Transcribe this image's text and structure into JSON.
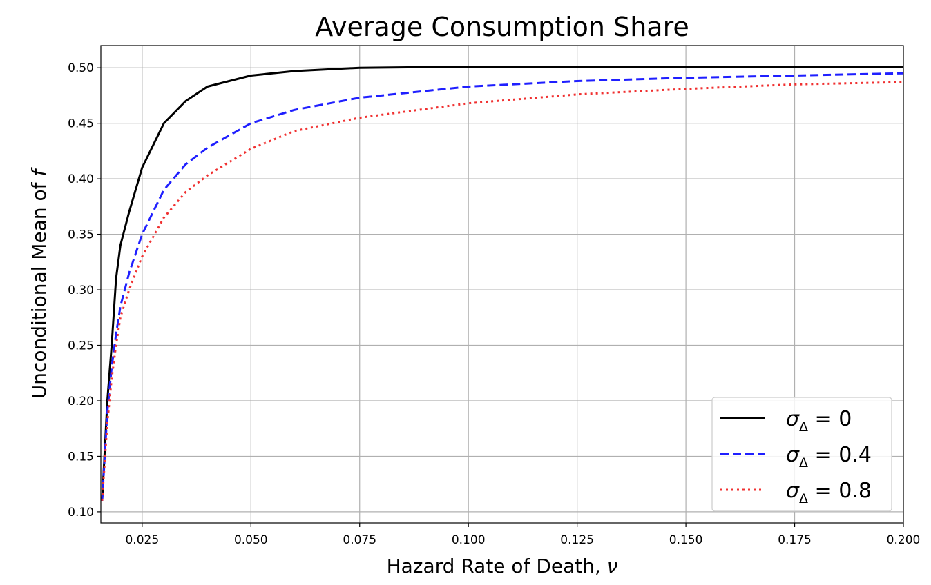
{
  "chart_data": {
    "type": "line",
    "title": "Average Consumption Share",
    "xlabel": "Hazard Rate of Death, ν",
    "ylabel": "Unconditional Mean of f",
    "xlim": [
      0.0155,
      0.2
    ],
    "ylim": [
      0.09,
      0.52
    ],
    "xticks": [
      0.025,
      0.05,
      0.075,
      0.1,
      0.125,
      0.15,
      0.175,
      0.2
    ],
    "xtick_labels": [
      "0.025",
      "0.050",
      "0.075",
      "0.100",
      "0.125",
      "0.150",
      "0.175",
      "0.200"
    ],
    "yticks": [
      0.1,
      0.15,
      0.2,
      0.25,
      0.3,
      0.35,
      0.4,
      0.45,
      0.5
    ],
    "ytick_labels": [
      "0.10",
      "0.15",
      "0.20",
      "0.25",
      "0.30",
      "0.35",
      "0.40",
      "0.45",
      "0.50"
    ],
    "grid": true,
    "legend_position": "lower-right",
    "series": [
      {
        "name": "σΔ = 0",
        "legend_symbol": "σ",
        "legend_sub": "Δ",
        "legend_rest": " = 0",
        "color": "#000000",
        "style": "solid",
        "x": [
          0.0158,
          0.017,
          0.018,
          0.019,
          0.02,
          0.022,
          0.025,
          0.03,
          0.035,
          0.04,
          0.05,
          0.06,
          0.075,
          0.1,
          0.125,
          0.15,
          0.175,
          0.2
        ],
        "y": [
          0.11,
          0.2,
          0.25,
          0.31,
          0.34,
          0.37,
          0.41,
          0.45,
          0.47,
          0.483,
          0.493,
          0.497,
          0.5,
          0.501,
          0.501,
          0.501,
          0.501,
          0.501
        ]
      },
      {
        "name": "σΔ = 0.4",
        "legend_symbol": "σ",
        "legend_sub": "Δ",
        "legend_rest": " = 0.4",
        "color": "#1f1fff",
        "style": "dashed",
        "x": [
          0.0158,
          0.017,
          0.018,
          0.019,
          0.02,
          0.022,
          0.025,
          0.03,
          0.035,
          0.04,
          0.05,
          0.06,
          0.075,
          0.1,
          0.125,
          0.15,
          0.175,
          0.2
        ],
        "y": [
          0.11,
          0.19,
          0.23,
          0.26,
          0.285,
          0.315,
          0.35,
          0.39,
          0.413,
          0.428,
          0.45,
          0.462,
          0.473,
          0.483,
          0.488,
          0.491,
          0.493,
          0.495
        ]
      },
      {
        "name": "σΔ = 0.8",
        "legend_symbol": "σ",
        "legend_sub": "Δ",
        "legend_rest": " = 0.8",
        "color": "#f03030",
        "style": "dotted",
        "x": [
          0.0158,
          0.017,
          0.018,
          0.019,
          0.02,
          0.022,
          0.025,
          0.03,
          0.035,
          0.04,
          0.05,
          0.06,
          0.075,
          0.1,
          0.125,
          0.15,
          0.175,
          0.2
        ],
        "y": [
          0.11,
          0.18,
          0.22,
          0.25,
          0.275,
          0.3,
          0.33,
          0.365,
          0.388,
          0.403,
          0.427,
          0.443,
          0.455,
          0.468,
          0.476,
          0.481,
          0.485,
          0.487
        ]
      }
    ]
  }
}
